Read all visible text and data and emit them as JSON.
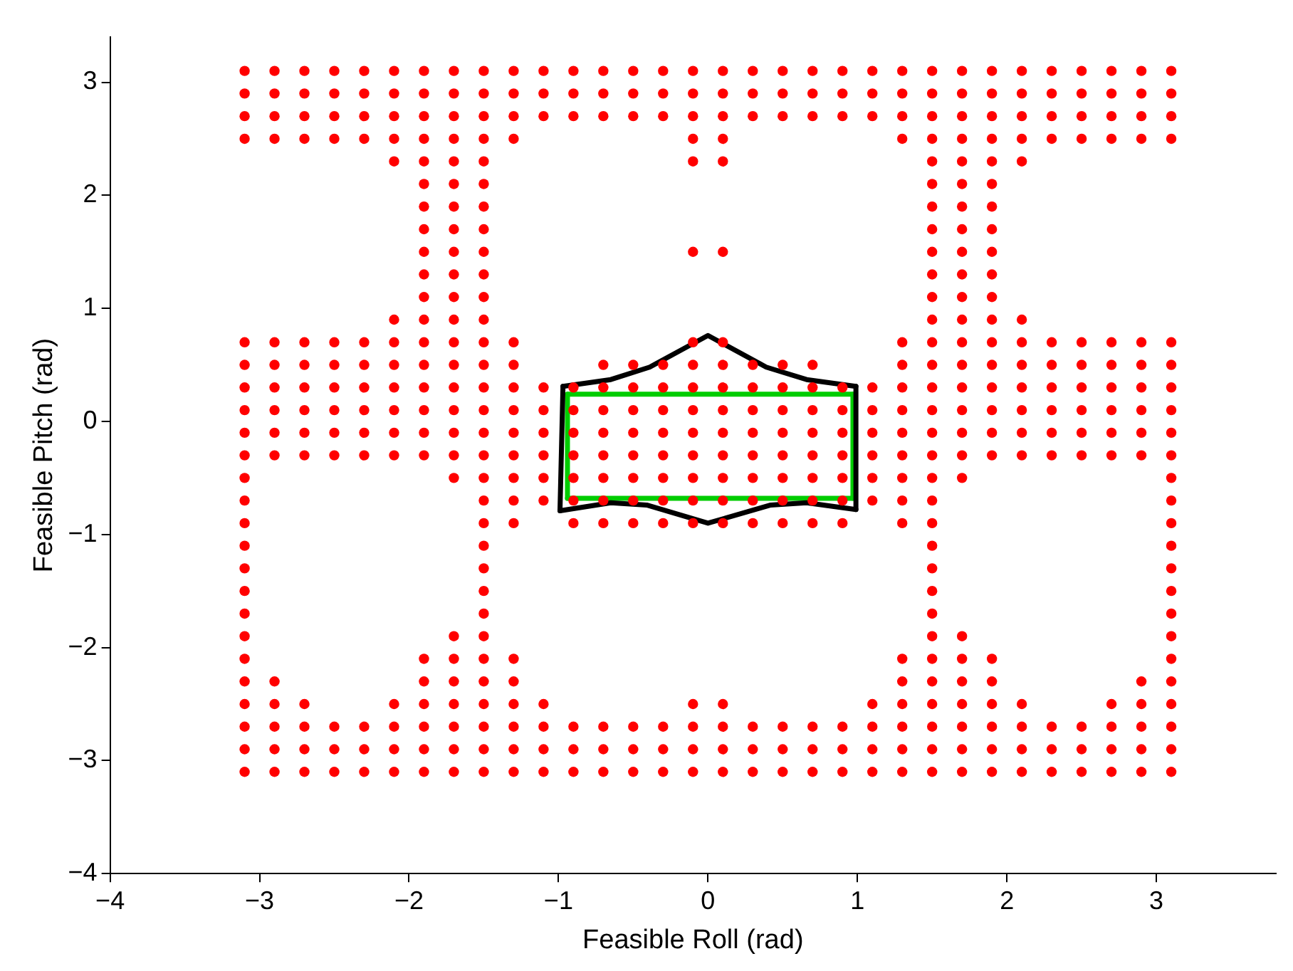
{
  "chart_data": {
    "type": "scatter",
    "xlabel": "Feasible Roll (rad)",
    "ylabel": "Feasible Pitch (rad)",
    "xlim": [
      -4,
      3.8
    ],
    "ylim": [
      -4,
      3.4
    ],
    "xticks": [
      {
        "value": -4,
        "label": "−4"
      },
      {
        "value": -3,
        "label": "−3"
      },
      {
        "value": -2,
        "label": "−2"
      },
      {
        "value": -1,
        "label": "−1"
      },
      0,
      1,
      2,
      3
    ],
    "yticks": [
      {
        "value": -4,
        "label": "−4"
      },
      {
        "value": -3,
        "label": "−3"
      },
      {
        "value": -2,
        "label": "−2"
      },
      {
        "value": -1,
        "label": "−1"
      },
      0,
      1,
      2,
      3
    ],
    "grid": false,
    "legend": false,
    "marker": "circle",
    "series": [
      {
        "color": "#ff0000",
        "x": [
          -3.1,
          -2.9,
          -2.7,
          -2.5,
          -2.3,
          -2.1,
          -1.9,
          -1.7,
          -1.5,
          -1.3,
          -1.1,
          -0.9,
          -0.7,
          -0.5,
          -0.3,
          -0.1,
          0.1,
          0.3,
          0.5,
          0.7,
          0.9,
          1.1,
          1.3,
          1.5,
          1.7,
          1.9,
          2.1,
          2.3,
          2.5,
          2.7,
          2.9,
          3.1
        ],
        "values": [
          3.1,
          3.1,
          3.1,
          3.1,
          3.1,
          3.1,
          3.1,
          3.1,
          3.1,
          3.1,
          3.1,
          3.1,
          3.1,
          3.1,
          3.1,
          3.1,
          3.1,
          3.1,
          3.1,
          3.1,
          3.1,
          3.1,
          3.1,
          3.1,
          3.1,
          3.1,
          3.1,
          3.1,
          3.1,
          3.1,
          3.1,
          3.1
        ]
      },
      {
        "color": "#ff0000",
        "x": [
          -3.1,
          -2.9,
          -2.7,
          -2.5,
          -2.3,
          -2.1,
          -1.9,
          -1.7,
          -1.5,
          -1.3,
          -1.1,
          -0.9,
          -0.7,
          -0.5,
          -0.3,
          -0.1,
          0.1,
          0.3,
          0.5,
          0.7,
          0.9,
          1.1,
          1.3,
          1.5,
          1.7,
          1.9,
          2.1,
          2.3,
          2.5,
          2.7,
          2.9,
          3.1
        ],
        "values": [
          2.9,
          2.9,
          2.9,
          2.9,
          2.9,
          2.9,
          2.9,
          2.9,
          2.9,
          2.9,
          2.9,
          2.9,
          2.9,
          2.9,
          2.9,
          2.9,
          2.9,
          2.9,
          2.9,
          2.9,
          2.9,
          2.9,
          2.9,
          2.9,
          2.9,
          2.9,
          2.9,
          2.9,
          2.9,
          2.9,
          2.9,
          2.9
        ]
      },
      {
        "color": "#ff0000",
        "x": [
          -3.1,
          -2.9,
          -2.7,
          -2.5,
          -2.3,
          -2.1,
          -1.9,
          -1.7,
          -1.5,
          -1.3,
          -1.1,
          -0.9,
          -0.7,
          -0.5,
          -0.3,
          -0.1,
          0.1,
          0.3,
          0.5,
          0.7,
          0.9,
          1.1,
          1.3,
          1.5,
          1.7,
          1.9,
          2.1,
          2.3,
          2.5,
          2.7,
          2.9,
          3.1
        ],
        "values": [
          2.7,
          2.7,
          2.7,
          2.7,
          2.7,
          2.7,
          2.7,
          2.7,
          2.7,
          2.7,
          2.7,
          2.7,
          2.7,
          2.7,
          2.7,
          2.7,
          2.7,
          2.7,
          2.7,
          2.7,
          2.7,
          2.7,
          2.7,
          2.7,
          2.7,
          2.7,
          2.7,
          2.7,
          2.7,
          2.7,
          2.7,
          2.7
        ]
      },
      {
        "color": "#ff0000",
        "x": [
          -3.1,
          -2.9,
          -2.7,
          -2.5,
          -2.3,
          -2.1,
          -1.9,
          -1.7,
          -1.5,
          -1.3,
          -0.1,
          0.1,
          1.3,
          1.5,
          1.7,
          1.9,
          2.1,
          2.3,
          2.5,
          2.7,
          2.9,
          3.1
        ],
        "values": [
          2.5,
          2.5,
          2.5,
          2.5,
          2.5,
          2.5,
          2.5,
          2.5,
          2.5,
          2.5,
          2.5,
          2.5,
          2.5,
          2.5,
          2.5,
          2.5,
          2.5,
          2.5,
          2.5,
          2.5,
          2.5,
          2.5
        ]
      },
      {
        "color": "#ff0000",
        "x": [
          -2.1,
          -1.9,
          -1.7,
          -1.5,
          -0.1,
          0.1,
          1.5,
          1.7,
          1.9,
          2.1
        ],
        "values": [
          2.3,
          2.3,
          2.3,
          2.3,
          2.3,
          2.3,
          2.3,
          2.3,
          2.3,
          2.3
        ]
      },
      {
        "color": "#ff0000",
        "x": [
          -1.9,
          -1.7,
          -1.5,
          1.5,
          1.7,
          1.9
        ],
        "values": [
          2.1,
          2.1,
          2.1,
          2.1,
          2.1,
          2.1
        ]
      },
      {
        "color": "#ff0000",
        "x": [
          -1.9,
          -1.7,
          -1.5,
          1.5,
          1.7,
          1.9
        ],
        "values": [
          1.9,
          1.9,
          1.9,
          1.9,
          1.9,
          1.9
        ]
      },
      {
        "color": "#ff0000",
        "x": [
          -1.9,
          -1.7,
          -1.5,
          1.5,
          1.7,
          1.9
        ],
        "values": [
          1.7,
          1.7,
          1.7,
          1.7,
          1.7,
          1.7
        ]
      },
      {
        "color": "#ff0000",
        "x": [
          -1.9,
          -1.7,
          -1.5,
          -0.1,
          0.1,
          1.5,
          1.7,
          1.9
        ],
        "values": [
          1.5,
          1.5,
          1.5,
          1.5,
          1.5,
          1.5,
          1.5,
          1.5
        ]
      },
      {
        "color": "#ff0000",
        "x": [
          -1.9,
          -1.7,
          -1.5,
          1.5,
          1.7,
          1.9
        ],
        "values": [
          1.3,
          1.3,
          1.3,
          1.3,
          1.3,
          1.3
        ]
      },
      {
        "color": "#ff0000",
        "x": [
          -1.9,
          -1.7,
          -1.5,
          1.5,
          1.7,
          1.9
        ],
        "values": [
          1.1,
          1.1,
          1.1,
          1.1,
          1.1,
          1.1
        ]
      },
      {
        "color": "#ff0000",
        "x": [
          -2.1,
          -1.9,
          -1.7,
          -1.5,
          1.5,
          1.7,
          1.9,
          2.1
        ],
        "values": [
          0.9,
          0.9,
          0.9,
          0.9,
          0.9,
          0.9,
          0.9,
          0.9
        ]
      },
      {
        "color": "#ff0000",
        "x": [
          -3.1,
          -2.9,
          -2.7,
          -2.5,
          -2.3,
          -2.1,
          -1.9,
          -1.7,
          -1.5,
          -1.3,
          -0.1,
          0.1,
          1.3,
          1.5,
          1.7,
          1.9,
          2.1,
          2.3,
          2.5,
          2.7,
          2.9,
          3.1
        ],
        "values": [
          0.7,
          0.7,
          0.7,
          0.7,
          0.7,
          0.7,
          0.7,
          0.7,
          0.7,
          0.7,
          0.7,
          0.7,
          0.7,
          0.7,
          0.7,
          0.7,
          0.7,
          0.7,
          0.7,
          0.7,
          0.7,
          0.7
        ]
      },
      {
        "color": "#ff0000",
        "x": [
          -3.1,
          -2.9,
          -2.7,
          -2.5,
          -2.3,
          -2.1,
          -1.9,
          -1.7,
          -1.5,
          -1.3,
          -0.7,
          -0.5,
          -0.3,
          -0.1,
          0.1,
          0.3,
          0.5,
          0.7,
          1.3,
          1.5,
          1.7,
          1.9,
          2.1,
          2.3,
          2.5,
          2.7,
          2.9,
          3.1
        ],
        "values": [
          0.5,
          0.5,
          0.5,
          0.5,
          0.5,
          0.5,
          0.5,
          0.5,
          0.5,
          0.5,
          0.5,
          0.5,
          0.5,
          0.5,
          0.5,
          0.5,
          0.5,
          0.5,
          0.5,
          0.5,
          0.5,
          0.5,
          0.5,
          0.5,
          0.5,
          0.5,
          0.5,
          0.5
        ]
      },
      {
        "color": "#ff0000",
        "x": [
          -3.1,
          -2.9,
          -2.7,
          -2.5,
          -2.3,
          -2.1,
          -1.9,
          -1.7,
          -1.5,
          -1.3,
          -1.1,
          -0.9,
          -0.7,
          -0.5,
          -0.3,
          -0.1,
          0.1,
          0.3,
          0.5,
          0.7,
          0.9,
          1.1,
          1.3,
          1.5,
          1.7,
          1.9,
          2.1,
          2.3,
          2.5,
          2.7,
          2.9,
          3.1
        ],
        "values": [
          0.3,
          0.3,
          0.3,
          0.3,
          0.3,
          0.3,
          0.3,
          0.3,
          0.3,
          0.3,
          0.3,
          0.3,
          0.3,
          0.3,
          0.3,
          0.3,
          0.3,
          0.3,
          0.3,
          0.3,
          0.3,
          0.3,
          0.3,
          0.3,
          0.3,
          0.3,
          0.3,
          0.3,
          0.3,
          0.3,
          0.3,
          0.3
        ]
      },
      {
        "color": "#ff0000",
        "x": [
          -3.1,
          -2.9,
          -2.7,
          -2.5,
          -2.3,
          -2.1,
          -1.9,
          -1.7,
          -1.5,
          -1.3,
          -1.1,
          -0.9,
          -0.7,
          -0.5,
          -0.3,
          -0.1,
          0.1,
          0.3,
          0.5,
          0.7,
          0.9,
          1.1,
          1.3,
          1.5,
          1.7,
          1.9,
          2.1,
          2.3,
          2.5,
          2.7,
          2.9,
          3.1
        ],
        "values": [
          0.1,
          0.1,
          0.1,
          0.1,
          0.1,
          0.1,
          0.1,
          0.1,
          0.1,
          0.1,
          0.1,
          0.1,
          0.1,
          0.1,
          0.1,
          0.1,
          0.1,
          0.1,
          0.1,
          0.1,
          0.1,
          0.1,
          0.1,
          0.1,
          0.1,
          0.1,
          0.1,
          0.1,
          0.1,
          0.1,
          0.1,
          0.1
        ]
      },
      {
        "color": "#ff0000",
        "x": [
          -3.1,
          -2.9,
          -2.7,
          -2.5,
          -2.3,
          -2.1,
          -1.9,
          -1.7,
          -1.5,
          -1.3,
          -1.1,
          -0.9,
          -0.7,
          -0.5,
          -0.3,
          -0.1,
          0.1,
          0.3,
          0.5,
          0.7,
          0.9,
          1.1,
          1.3,
          1.5,
          1.7,
          1.9,
          2.1,
          2.3,
          2.5,
          2.7,
          2.9,
          3.1
        ],
        "values": [
          -0.1,
          -0.1,
          -0.1,
          -0.1,
          -0.1,
          -0.1,
          -0.1,
          -0.1,
          -0.1,
          -0.1,
          -0.1,
          -0.1,
          -0.1,
          -0.1,
          -0.1,
          -0.1,
          -0.1,
          -0.1,
          -0.1,
          -0.1,
          -0.1,
          -0.1,
          -0.1,
          -0.1,
          -0.1,
          -0.1,
          -0.1,
          -0.1,
          -0.1,
          -0.1,
          -0.1,
          -0.1
        ]
      },
      {
        "color": "#ff0000",
        "x": [
          -3.1,
          -2.9,
          -2.7,
          -2.5,
          -2.3,
          -2.1,
          -1.9,
          -1.7,
          -1.5,
          -1.3,
          -1.1,
          -0.9,
          -0.7,
          -0.5,
          -0.3,
          -0.1,
          0.1,
          0.3,
          0.5,
          0.7,
          0.9,
          1.1,
          1.3,
          1.5,
          1.7,
          1.9,
          2.1,
          2.3,
          2.5,
          2.7,
          2.9,
          3.1
        ],
        "values": [
          -0.3,
          -0.3,
          -0.3,
          -0.3,
          -0.3,
          -0.3,
          -0.3,
          -0.3,
          -0.3,
          -0.3,
          -0.3,
          -0.3,
          -0.3,
          -0.3,
          -0.3,
          -0.3,
          -0.3,
          -0.3,
          -0.3,
          -0.3,
          -0.3,
          -0.3,
          -0.3,
          -0.3,
          -0.3,
          -0.3,
          -0.3,
          -0.3,
          -0.3,
          -0.3,
          -0.3,
          -0.3
        ]
      },
      {
        "color": "#ff0000",
        "x": [
          -3.1,
          -1.7,
          -1.5,
          -1.3,
          -1.1,
          -0.9,
          -0.7,
          -0.5,
          -0.3,
          -0.1,
          0.1,
          0.3,
          0.5,
          0.7,
          0.9,
          1.1,
          1.3,
          1.5,
          1.7,
          3.1
        ],
        "values": [
          -0.5,
          -0.5,
          -0.5,
          -0.5,
          -0.5,
          -0.5,
          -0.5,
          -0.5,
          -0.5,
          -0.5,
          -0.5,
          -0.5,
          -0.5,
          -0.5,
          -0.5,
          -0.5,
          -0.5,
          -0.5,
          -0.5,
          -0.5
        ]
      },
      {
        "color": "#ff0000",
        "x": [
          -3.1,
          -1.5,
          -1.3,
          -1.1,
          -0.9,
          -0.7,
          -0.5,
          -0.3,
          -0.1,
          0.1,
          0.3,
          0.5,
          0.7,
          0.9,
          1.1,
          1.3,
          1.5,
          3.1
        ],
        "values": [
          -0.7,
          -0.7,
          -0.7,
          -0.7,
          -0.7,
          -0.7,
          -0.7,
          -0.7,
          -0.7,
          -0.7,
          -0.7,
          -0.7,
          -0.7,
          -0.7,
          -0.7,
          -0.7,
          -0.7,
          -0.7
        ]
      },
      {
        "color": "#ff0000",
        "x": [
          -3.1,
          -1.5,
          -1.3,
          -0.9,
          -0.7,
          -0.5,
          -0.3,
          -0.1,
          0.1,
          0.3,
          0.5,
          0.7,
          0.9,
          1.3,
          1.5,
          3.1
        ],
        "values": [
          -0.9,
          -0.9,
          -0.9,
          -0.9,
          -0.9,
          -0.9,
          -0.9,
          -0.9,
          -0.9,
          -0.9,
          -0.9,
          -0.9,
          -0.9,
          -0.9,
          -0.9,
          -0.9
        ]
      },
      {
        "color": "#ff0000",
        "x": [
          -3.1,
          -1.5,
          1.5,
          3.1
        ],
        "values": [
          -1.1,
          -1.1,
          -1.1,
          -1.1
        ]
      },
      {
        "color": "#ff0000",
        "x": [
          -3.1,
          -1.5,
          1.5,
          3.1
        ],
        "values": [
          -1.3,
          -1.3,
          -1.3,
          -1.3
        ]
      },
      {
        "color": "#ff0000",
        "x": [
          -3.1,
          -1.5,
          1.5,
          3.1
        ],
        "values": [
          -1.5,
          -1.5,
          -1.5,
          -1.5
        ]
      },
      {
        "color": "#ff0000",
        "x": [
          -3.1,
          -1.5,
          1.5,
          3.1
        ],
        "values": [
          -1.7,
          -1.7,
          -1.7,
          -1.7
        ]
      },
      {
        "color": "#ff0000",
        "x": [
          -3.1,
          -1.7,
          -1.5,
          1.5,
          1.7,
          3.1
        ],
        "values": [
          -1.9,
          -1.9,
          -1.9,
          -1.9,
          -1.9,
          -1.9
        ]
      },
      {
        "color": "#ff0000",
        "x": [
          -3.1,
          -1.9,
          -1.7,
          -1.5,
          -1.3,
          1.3,
          1.5,
          1.7,
          1.9,
          3.1
        ],
        "values": [
          -2.1,
          -2.1,
          -2.1,
          -2.1,
          -2.1,
          -2.1,
          -2.1,
          -2.1,
          -2.1,
          -2.1
        ]
      },
      {
        "color": "#ff0000",
        "x": [
          -3.1,
          -2.9,
          -1.9,
          -1.7,
          -1.5,
          -1.3,
          1.3,
          1.5,
          1.7,
          1.9,
          2.9,
          3.1
        ],
        "values": [
          -2.3,
          -2.3,
          -2.3,
          -2.3,
          -2.3,
          -2.3,
          -2.3,
          -2.3,
          -2.3,
          -2.3,
          -2.3,
          -2.3
        ]
      },
      {
        "color": "#ff0000",
        "x": [
          -3.1,
          -2.9,
          -2.7,
          -2.1,
          -1.9,
          -1.7,
          -1.5,
          -1.3,
          -1.1,
          -0.1,
          0.1,
          1.1,
          1.3,
          1.5,
          1.7,
          1.9,
          2.1,
          2.7,
          2.9,
          3.1
        ],
        "values": [
          -2.5,
          -2.5,
          -2.5,
          -2.5,
          -2.5,
          -2.5,
          -2.5,
          -2.5,
          -2.5,
          -2.5,
          -2.5,
          -2.5,
          -2.5,
          -2.5,
          -2.5,
          -2.5,
          -2.5,
          -2.5,
          -2.5,
          -2.5
        ]
      },
      {
        "color": "#ff0000",
        "x": [
          -3.1,
          -2.9,
          -2.7,
          -2.5,
          -2.3,
          -2.1,
          -1.9,
          -1.7,
          -1.5,
          -1.3,
          -1.1,
          -0.9,
          -0.7,
          -0.5,
          -0.3,
          -0.1,
          0.1,
          0.3,
          0.5,
          0.7,
          0.9,
          1.1,
          1.3,
          1.5,
          1.7,
          1.9,
          2.1,
          2.3,
          2.5,
          2.7,
          2.9,
          3.1
        ],
        "values": [
          -2.7,
          -2.7,
          -2.7,
          -2.7,
          -2.7,
          -2.7,
          -2.7,
          -2.7,
          -2.7,
          -2.7,
          -2.7,
          -2.7,
          -2.7,
          -2.7,
          -2.7,
          -2.7,
          -2.7,
          -2.7,
          -2.7,
          -2.7,
          -2.7,
          -2.7,
          -2.7,
          -2.7,
          -2.7,
          -2.7,
          -2.7,
          -2.7,
          -2.7,
          -2.7,
          -2.7,
          -2.7
        ]
      },
      {
        "color": "#ff0000",
        "x": [
          -3.1,
          -2.9,
          -2.7,
          -2.5,
          -2.3,
          -2.1,
          -1.9,
          -1.7,
          -1.5,
          -1.3,
          -1.1,
          -0.9,
          -0.7,
          -0.5,
          -0.3,
          -0.1,
          0.1,
          0.3,
          0.5,
          0.7,
          0.9,
          1.1,
          1.3,
          1.5,
          1.7,
          1.9,
          2.1,
          2.3,
          2.5,
          2.7,
          2.9,
          3.1
        ],
        "values": [
          -2.9,
          -2.9,
          -2.9,
          -2.9,
          -2.9,
          -2.9,
          -2.9,
          -2.9,
          -2.9,
          -2.9,
          -2.9,
          -2.9,
          -2.9,
          -2.9,
          -2.9,
          -2.9,
          -2.9,
          -2.9,
          -2.9,
          -2.9,
          -2.9,
          -2.9,
          -2.9,
          -2.9,
          -2.9,
          -2.9,
          -2.9,
          -2.9,
          -2.9,
          -2.9,
          -2.9,
          -2.9
        ]
      },
      {
        "color": "#ff0000",
        "x": [
          -3.1,
          -2.9,
          -2.7,
          -2.5,
          -2.3,
          -2.1,
          -1.9,
          -1.7,
          -1.5,
          -1.3,
          -1.1,
          -0.9,
          -0.7,
          -0.5,
          -0.3,
          -0.1,
          0.1,
          0.3,
          0.5,
          0.7,
          0.9,
          1.1,
          1.3,
          1.5,
          1.7,
          1.9,
          2.1,
          2.3,
          2.5,
          2.7,
          2.9,
          3.1
        ],
        "values": [
          -3.1,
          -3.1,
          -3.1,
          -3.1,
          -3.1,
          -3.1,
          -3.1,
          -3.1,
          -3.1,
          -3.1,
          -3.1,
          -3.1,
          -3.1,
          -3.1,
          -3.1,
          -3.1,
          -3.1,
          -3.1,
          -3.1,
          -3.1,
          -3.1,
          -3.1,
          -3.1,
          -3.1,
          -3.1,
          -3.1,
          -3.1,
          -3.1,
          -3.1,
          -3.1,
          -3.1,
          -3.1
        ]
      },
      {
        "type": "line",
        "marker": "none",
        "color": "#000000",
        "x": [
          -0.97,
          -0.65,
          -0.39,
          0,
          0.39,
          0.66,
          0.99
        ],
        "values": [
          0.31,
          0.37,
          0.48,
          0.76,
          0.48,
          0.37,
          0.31
        ]
      },
      {
        "type": "line",
        "marker": "none",
        "color": "#000000",
        "x": [
          -0.99,
          -0.65,
          -0.41,
          0,
          0.42,
          0.66,
          0.99
        ],
        "values": [
          -0.79,
          -0.72,
          -0.74,
          -0.9,
          -0.74,
          -0.72,
          -0.78
        ]
      },
      {
        "type": "line",
        "marker": "none",
        "color": "#000000",
        "x": [
          -0.97,
          -0.99
        ],
        "values": [
          0.31,
          -0.79
        ]
      },
      {
        "type": "line",
        "marker": "none",
        "color": "#000000",
        "x": [
          0.99,
          0.99
        ],
        "values": [
          0.31,
          -0.78
        ]
      },
      {
        "type": "line",
        "marker": "none",
        "color": "#00cc00",
        "x": [
          -0.94,
          0.97
        ],
        "values": [
          0.24,
          0.24
        ]
      },
      {
        "type": "line",
        "marker": "none",
        "color": "#00cc00",
        "x": [
          -0.94,
          0.97
        ],
        "values": [
          -0.68,
          -0.68
        ]
      },
      {
        "type": "line",
        "marker": "none",
        "color": "#00cc00",
        "x": [
          -0.94,
          -0.94
        ],
        "values": [
          0.24,
          -0.68
        ]
      },
      {
        "type": "line",
        "marker": "none",
        "color": "#00cc00",
        "x": [
          0.97,
          0.97
        ],
        "values": [
          0.24,
          -0.68
        ]
      }
    ]
  }
}
